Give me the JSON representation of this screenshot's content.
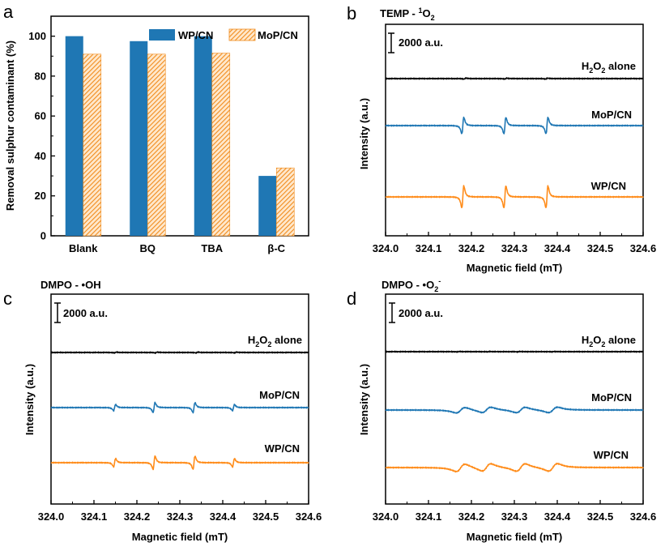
{
  "chart_data": [
    {
      "panel": "a",
      "type": "bar",
      "title": "",
      "xlabel": "",
      "ylabel": "Removal sulphur contaminant (%)",
      "ylim": [
        0,
        110
      ],
      "yticks": [
        "0",
        "20",
        "40",
        "60",
        "80",
        "100"
      ],
      "categories": [
        "Blank",
        "BQ",
        "TBA",
        "β-C"
      ],
      "series": [
        {
          "name": "WP/CN",
          "values": [
            100,
            97.5,
            100,
            30
          ],
          "color": "#1f77b4",
          "pattern": "solid"
        },
        {
          "name": "MoP/CN",
          "values": [
            91,
            91,
            91.5,
            34
          ],
          "color": "#ff9933",
          "pattern": "hatched"
        }
      ],
      "legend": "top-right"
    },
    {
      "panel": "b",
      "type": "line",
      "title_main": "TEMP - ",
      "title_sup": "1",
      "title_base": "O",
      "title_sub": "2",
      "xlabel": "Magnetic field (mT)",
      "ylabel": "Intensity (a.u.)",
      "xlim": [
        324.0,
        324.6
      ],
      "xticks": [
        "324.0",
        "324.1",
        "324.2",
        "324.3",
        "324.4",
        "324.5",
        "324.6"
      ],
      "scale_bar": "2000 a.u.",
      "series": [
        {
          "name": "H₂O₂ alone",
          "label_base": "H",
          "label_sub1": "2",
          "label_mid": "O",
          "label_sub2": "2",
          "label_tail": " alone",
          "color": "#000000",
          "style": "flat",
          "line_positions": [
            324.185,
            324.28,
            324.375
          ],
          "amplitude": 0.7
        },
        {
          "name": "MoP/CN",
          "label": "MoP/CN",
          "color": "#1f77b4",
          "style": "sharp-triplet",
          "line_positions": [
            324.18,
            324.278,
            324.376
          ],
          "amplitude": 12
        },
        {
          "name": "WP/CN",
          "label": "WP/CN",
          "color": "#ff8c1a",
          "style": "sharp-triplet",
          "line_positions": [
            324.18,
            324.278,
            324.376
          ],
          "amplitude": 16
        }
      ]
    },
    {
      "panel": "c",
      "type": "line",
      "title_main": "DMPO - •OH",
      "xlabel": "Magnetic field (mT)",
      "ylabel": "Intensity (a.u.)",
      "xlim": [
        324.0,
        324.6
      ],
      "xticks": [
        "324.0",
        "324.1",
        "324.2",
        "324.3",
        "324.4",
        "324.5",
        "324.6"
      ],
      "scale_bar": "2000 a.u.",
      "series": [
        {
          "name": "H₂O₂ alone",
          "label_base": "H",
          "label_sub1": "2",
          "label_mid": "O",
          "label_sub2": "2",
          "label_tail": " alone",
          "color": "#000000",
          "style": "flat",
          "line_positions": [
            324.15,
            324.245,
            324.34,
            324.43
          ],
          "amplitude": 0.6
        },
        {
          "name": "MoP/CN",
          "label": "MoP/CN",
          "color": "#1f77b4",
          "style": "quartet-1221",
          "line_positions": [
            324.148,
            324.24,
            324.333,
            324.425
          ],
          "amplitude": 4.5
        },
        {
          "name": "WP/CN",
          "label": "WP/CN",
          "color": "#ff8c1a",
          "style": "quartet-1221",
          "line_positions": [
            324.148,
            324.24,
            324.333,
            324.425
          ],
          "amplitude": 6
        }
      ]
    },
    {
      "panel": "d",
      "type": "line",
      "title_main": "DMPO - •O",
      "title_sub": "2",
      "title_sup": "-",
      "xlabel": "Magnetic field (mT)",
      "ylabel": "Intensity (a.u.)",
      "xlim": [
        324.0,
        324.6
      ],
      "xticks": [
        "324.0",
        "324.1",
        "324.2",
        "324.3",
        "324.4",
        "324.5",
        "324.6"
      ],
      "scale_bar": "2000 a.u.",
      "series": [
        {
          "name": "H₂O₂ alone",
          "label_base": "H",
          "label_sub1": "2",
          "label_mid": "O",
          "label_sub2": "2",
          "label_tail": " alone",
          "color": "#000000",
          "style": "flat",
          "line_positions": [
            324.17,
            324.24,
            324.31,
            324.39
          ],
          "amplitude": 0.3
        },
        {
          "name": "MoP/CN",
          "label": "MoP/CN",
          "color": "#1f77b4",
          "style": "broad-quartet",
          "line_positions": [
            324.175,
            324.235,
            324.315,
            324.39
          ],
          "amplitude": 4
        },
        {
          "name": "WP/CN",
          "label": "WP/CN",
          "color": "#ff8c1a",
          "style": "broad-quartet",
          "line_positions": [
            324.175,
            324.235,
            324.315,
            324.39
          ],
          "amplitude": 5.5
        }
      ]
    }
  ],
  "panel_letters": [
    "a",
    "b",
    "c",
    "d"
  ]
}
